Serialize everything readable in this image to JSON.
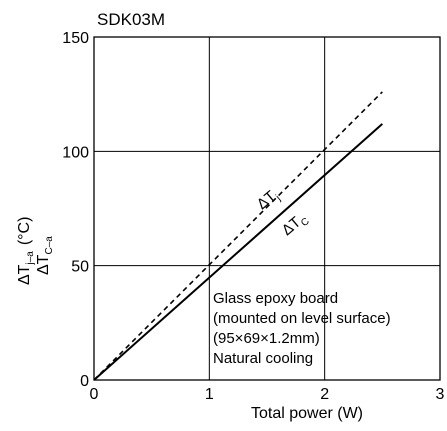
{
  "chart_data": {
    "type": "line",
    "title": "SDK03M",
    "xlabel": "Total power (W)",
    "ylabel": {
      "line1_prefix": "ΔT",
      "line1_sub": "j–a",
      "line1_unit": "(°C)",
      "line2_prefix": "ΔT",
      "line2_sub": "C–a"
    },
    "xlim": [
      0,
      3
    ],
    "ylim": [
      0,
      150
    ],
    "xticks": [
      "0",
      "1",
      "2",
      "3"
    ],
    "yticks": [
      "0",
      "50",
      "100",
      "150"
    ],
    "grid": true,
    "series": [
      {
        "name": "ΔTj",
        "label_prefix": "ΔT",
        "label_sub": "j",
        "style": "dashed",
        "x": [
          0,
          2.5
        ],
        "y": [
          0,
          126
        ]
      },
      {
        "name": "ΔTc",
        "label_prefix": "ΔT",
        "label_sub": "C",
        "style": "solid",
        "x": [
          0,
          2.5
        ],
        "y": [
          0,
          112
        ]
      }
    ],
    "annotation": [
      "Glass epoxy board",
      "(mounted on level surface)",
      "(95×69×1.2mm)",
      "Natural cooling"
    ]
  }
}
